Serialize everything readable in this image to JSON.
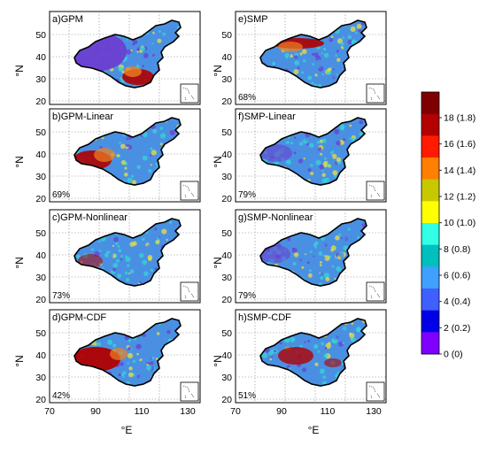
{
  "panels": [
    {
      "label": "a)GPM",
      "pct": ""
    },
    {
      "label": "b)GPM-Linear",
      "pct": "69%"
    },
    {
      "label": "c)GPM-Nonlinear",
      "pct": "73%"
    },
    {
      "label": "d)GPM-CDF",
      "pct": "42%"
    },
    {
      "label": "e)SMP",
      "pct": "68%"
    },
    {
      "label": "f)SMP-Linear",
      "pct": "79%"
    },
    {
      "label": "g)SMP-Nonlinear",
      "pct": "79%"
    },
    {
      "label": "h)SMP-CDF",
      "pct": "51%"
    }
  ],
  "axes": {
    "ylabel": "°N",
    "xlabel": "°E",
    "yticks": [
      "50",
      "40",
      "30",
      "20"
    ],
    "xticks": [
      "70",
      "90",
      "110",
      "130"
    ]
  },
  "colorbar": {
    "labels": [
      "18 (1.8)",
      "16 (1.6)",
      "14 (1.4)",
      "12 (1.2)",
      "10 (1.0)",
      "8 (0.8)",
      "6 (0.6)",
      "4 (0.4)",
      "2 (0.2)",
      "0 (0)"
    ],
    "colors": [
      "#7f0000",
      "#b30000",
      "#ff1a00",
      "#ff7f00",
      "#c8c800",
      "#ffff00",
      "#33ffe6",
      "#00bfbf",
      "#3fa0ff",
      "#3f5fff",
      "#0000e6",
      "#7f00ff"
    ]
  },
  "map_colors": {
    "blue": "#4a90e2",
    "cyan": "#36d6d6",
    "purple": "#6b3fd1",
    "red": "#b00000",
    "orange": "#f08020",
    "yellow": "#e8e040"
  }
}
